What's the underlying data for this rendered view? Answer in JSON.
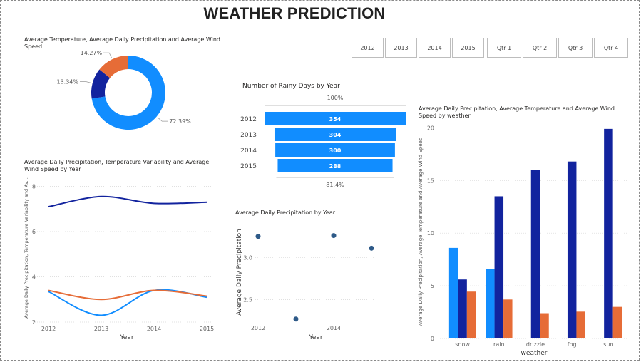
{
  "dashboard": {
    "title": "WEATHER PREDICTION"
  },
  "slicers": {
    "years": [
      "2012",
      "2013",
      "2014",
      "2015"
    ],
    "quarters": [
      "Qtr 1",
      "Qtr 2",
      "Qtr 3",
      "Qtr 4"
    ]
  },
  "colors": {
    "blue": "#118DFF",
    "navy": "#12239E",
    "orange": "#E66C37",
    "funnel": "#118DFF",
    "dot": "#2E5A88"
  },
  "chart_data": [
    {
      "type": "donut",
      "title": "Average Temperature, Average Daily Precipitation and Average Wind Speed",
      "slices": [
        {
          "value": 72.39,
          "label": "72.39%",
          "color": "#118DFF"
        },
        {
          "value": 13.34,
          "label": "13.34%",
          "color": "#12239E"
        },
        {
          "value": 14.27,
          "label": "14.27%",
          "color": "#E66C37"
        }
      ]
    },
    {
      "type": "funnel",
      "title": "Number of Rainy Days by Year",
      "categories": [
        "2012",
        "2013",
        "2014",
        "2015"
      ],
      "values": [
        354,
        304,
        300,
        288
      ],
      "value_labels": [
        "354",
        "304",
        "300",
        "288"
      ],
      "top_label": "100%",
      "bottom_label": "81.4%"
    },
    {
      "type": "line",
      "title": "Average Daily Precipitation, Temperature Variability and Average Wind Speed by Year",
      "xlabel": "Year",
      "ylabel": "Average Daily Precipitation, Temperature Variability and Av...",
      "x": [
        2012,
        2013,
        2014,
        2015
      ],
      "x_ticks": [
        "2012",
        "2013",
        "2014",
        "2015"
      ],
      "y_ticks": [
        "2",
        "4",
        "6",
        "8"
      ],
      "ylim": [
        2,
        8.3
      ],
      "series": [
        {
          "values": [
            7.1,
            7.55,
            7.25,
            7.3
          ],
          "color": "#12239E"
        },
        {
          "values": [
            3.35,
            2.3,
            3.4,
            3.1
          ],
          "color": "#118DFF"
        },
        {
          "values": [
            3.4,
            3.0,
            3.4,
            3.15
          ],
          "color": "#E66C37"
        }
      ]
    },
    {
      "type": "scatter",
      "title": "Average Daily Precipitation by Year",
      "xlabel": "Year",
      "ylabel": "Average Daily Precipitation",
      "x_ticks": [
        "2012",
        "2014"
      ],
      "y_ticks": [
        "2.5",
        "3.0"
      ],
      "xlim": [
        2012,
        2015
      ],
      "ylim": [
        2.2,
        3.4
      ],
      "points": [
        {
          "x": 2012,
          "y": 3.25
        },
        {
          "x": 2013,
          "y": 2.27
        },
        {
          "x": 2014,
          "y": 3.26
        },
        {
          "x": 2015,
          "y": 3.11
        }
      ]
    },
    {
      "type": "bar",
      "title": "Average Daily Precipitation, Average Temperature and Average Wind Speed by weather",
      "xlabel": "weather",
      "ylabel": "Average Daily Precipitation, Average Temperature and Average Wind Speed",
      "categories": [
        "snow",
        "rain",
        "drizzle",
        "fog",
        "sun"
      ],
      "y_ticks": [
        "0",
        "5",
        "10",
        "15",
        "20"
      ],
      "ylim": [
        0,
        20.5
      ],
      "series": [
        {
          "values": [
            8.6,
            6.6,
            0,
            0,
            0
          ],
          "color": "#118DFF"
        },
        {
          "values": [
            5.6,
            13.5,
            16.0,
            16.8,
            19.9
          ],
          "color": "#12239E"
        },
        {
          "values": [
            4.45,
            3.7,
            2.4,
            2.55,
            3.0
          ],
          "color": "#E66C37"
        }
      ]
    }
  ]
}
